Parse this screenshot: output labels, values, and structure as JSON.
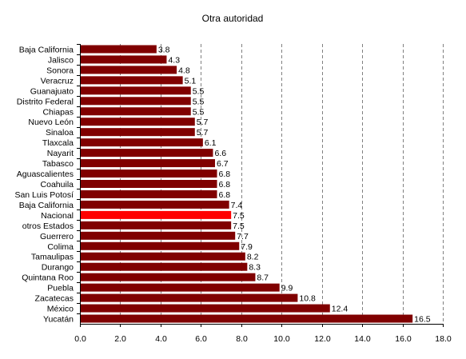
{
  "chart_data": {
    "type": "bar",
    "orientation": "horizontal",
    "title": "Otra autoridad",
    "xlabel": "",
    "ylabel": "",
    "xlim": [
      0,
      18
    ],
    "xticks": [
      "0.0",
      "2.0",
      "4.0",
      "6.0",
      "8.0",
      "10.0",
      "12.0",
      "14.0",
      "16.0",
      "18.0"
    ],
    "grid": "vertical dashed",
    "legend": "none",
    "categories": [
      "Baja California",
      "Jalisco",
      "Sonora",
      "Veracruz",
      "Guanajuato",
      "Distrito Federal",
      "Chiapas",
      "Nuevo León",
      "Sinaloa",
      "Tlaxcala",
      "Nayarit",
      "Tabasco",
      "Aguascalientes",
      "Coahuila",
      "San Luis Potosí",
      "Baja California",
      "Nacional",
      "otros Estados",
      "Guerrero",
      "Colima",
      "Tamaulipas",
      "Durango",
      "Quintana Roo",
      "Puebla",
      "Zacatecas",
      "México",
      "Yucatán"
    ],
    "values": [
      3.8,
      4.3,
      4.8,
      5.1,
      5.5,
      5.5,
      5.5,
      5.7,
      5.7,
      6.1,
      6.6,
      6.7,
      6.8,
      6.8,
      6.8,
      7.4,
      7.5,
      7.5,
      7.7,
      7.9,
      8.2,
      8.3,
      8.7,
      9.9,
      10.8,
      12.4,
      16.5
    ],
    "value_labels": [
      "3.8",
      "4.3",
      "4.8",
      "5.1",
      "5.5",
      "5.5",
      "5.5",
      "5.7",
      "5.7",
      "6.1",
      "6.6",
      "6.7",
      "6.8",
      "6.8",
      "6.8",
      "7.4",
      "7.5",
      "7.5",
      "7.7",
      "7.9",
      "8.2",
      "8.3",
      "8.7",
      "9.9",
      "10.8",
      "12.4",
      "16.5"
    ],
    "highlight_category": "Nacional",
    "colors": {
      "bar": "#800000",
      "highlight": "#ff0000",
      "grid": "#808080",
      "axis": "#000000"
    }
  }
}
